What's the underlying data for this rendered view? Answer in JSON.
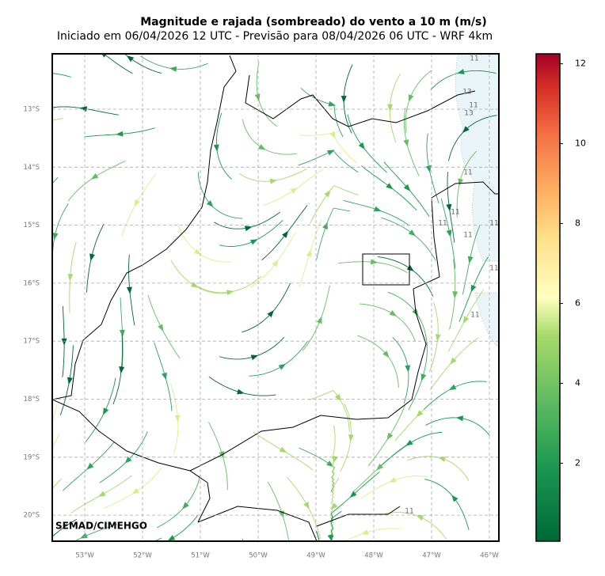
{
  "header": {
    "title": "Magnitude e rajada (sombreado) do vento a 10 m (m/s)",
    "subtitle": "Iniciado em 06/04/2026 12 UTC - Previsão para 08/04/2026 06 UTC - WRF 4km"
  },
  "map": {
    "lon_labels": [
      "53°W",
      "52°W",
      "51°W",
      "50°W",
      "49°W",
      "48°W",
      "47°W",
      "46°W"
    ],
    "lat_labels": [
      "13°S",
      "14°S",
      "15°S",
      "16°S",
      "17°S",
      "18°S",
      "19°S",
      "20°S"
    ],
    "contour_labels": [
      "11",
      "13",
      "11",
      "13",
      "11",
      "11",
      "11",
      "11",
      "11",
      "11",
      "11",
      "11"
    ],
    "credit": "SEMAD/CIMEHGO"
  },
  "colorbar": {
    "range": [
      0.05,
      12.25
    ],
    "ticks": [
      2,
      4,
      6,
      8,
      10,
      12
    ]
  }
}
